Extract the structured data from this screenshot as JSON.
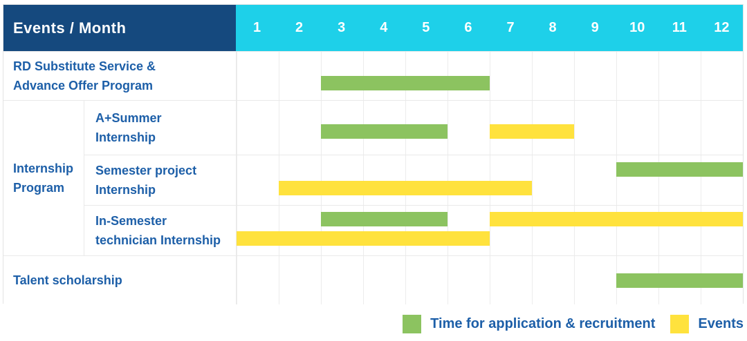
{
  "header": {
    "label": "Events / Month",
    "months": [
      "1",
      "2",
      "3",
      "4",
      "5",
      "6",
      "7",
      "8",
      "9",
      "10",
      "11",
      "12"
    ]
  },
  "rows": [
    {
      "id": "rd-substitute-service",
      "full_width_label": true,
      "label_lines": [
        "RD Substitute Service &",
        "Advance Offer Program"
      ],
      "bars": [
        {
          "series": "application",
          "start": 3,
          "end": 6,
          "lane": 0
        }
      ]
    },
    {
      "id": "a-plus-summer-internship",
      "group": {
        "lines": [
          "Internship",
          "Program"
        ]
      },
      "label_lines": [
        "A+Summer",
        "Internship"
      ],
      "bars": [
        {
          "series": "application",
          "start": 3,
          "end": 5,
          "lane": 0
        },
        {
          "series": "events",
          "start": 7,
          "end": 8,
          "lane": 0
        }
      ]
    },
    {
      "id": "semester-project-internship",
      "label_lines": [
        "Semester project",
        "Internship"
      ],
      "bars": [
        {
          "series": "application",
          "start": 10,
          "end": 12,
          "lane": 0
        },
        {
          "series": "events",
          "start": 2,
          "end": 7,
          "lane": 1
        }
      ]
    },
    {
      "id": "in-semester-technician-internship",
      "label_lines": [
        "In-Semester",
        "technician Internship"
      ],
      "bars": [
        {
          "series": "application",
          "start": 3,
          "end": 5,
          "lane": 0
        },
        {
          "series": "events",
          "start": 7,
          "end": 12,
          "lane": 0
        },
        {
          "series": "events",
          "start": 1,
          "end": 6,
          "lane": 1
        }
      ]
    },
    {
      "id": "talent-scholarship",
      "full_width_label": true,
      "label_lines": [
        "Talent scholarship"
      ],
      "bars": [
        {
          "series": "application",
          "start": 10,
          "end": 12,
          "lane": 0
        }
      ]
    }
  ],
  "legend": {
    "items": [
      {
        "series": "application",
        "label": "Time for application & recruitment"
      },
      {
        "series": "events",
        "label": "Events"
      }
    ]
  },
  "colors": {
    "navy": "#15497E",
    "cyan": "#1ED0E9",
    "green": "#8CC360",
    "yellow": "#FFE23D",
    "text_blue": "#1D5FA8"
  },
  "chart_data": {
    "type": "gantt",
    "title": "Events / Month",
    "xlabel": "Month",
    "x_ticks": [
      1,
      2,
      3,
      4,
      5,
      6,
      7,
      8,
      9,
      10,
      11,
      12
    ],
    "x_range": [
      1,
      12
    ],
    "grid": true,
    "legend_position": "bottom-right",
    "series": [
      {
        "name": "Time for application & recruitment",
        "color": "#8CC360"
      },
      {
        "name": "Events",
        "color": "#FFE23D"
      }
    ],
    "categories": [
      {
        "name": "RD Substitute Service & Advance Offer Program",
        "bars": [
          {
            "series": "Time for application & recruitment",
            "start_month": 3,
            "end_month": 6
          }
        ]
      },
      {
        "name": "Internship Program — A+Summer Internship",
        "bars": [
          {
            "series": "Time for application & recruitment",
            "start_month": 3,
            "end_month": 5
          },
          {
            "series": "Events",
            "start_month": 7,
            "end_month": 8
          }
        ]
      },
      {
        "name": "Internship Program — Semester project Internship",
        "bars": [
          {
            "series": "Time for application & recruitment",
            "start_month": 10,
            "end_month": 12
          },
          {
            "series": "Events",
            "start_month": 2,
            "end_month": 7
          }
        ]
      },
      {
        "name": "Internship Program — In-Semester technician Internship",
        "bars": [
          {
            "series": "Time for application & recruitment",
            "start_month": 3,
            "end_month": 5
          },
          {
            "series": "Events",
            "start_month": 1,
            "end_month": 6
          },
          {
            "series": "Events",
            "start_month": 7,
            "end_month": 12
          }
        ]
      },
      {
        "name": "Talent scholarship",
        "bars": [
          {
            "series": "Time for application & recruitment",
            "start_month": 10,
            "end_month": 12
          }
        ]
      }
    ]
  }
}
